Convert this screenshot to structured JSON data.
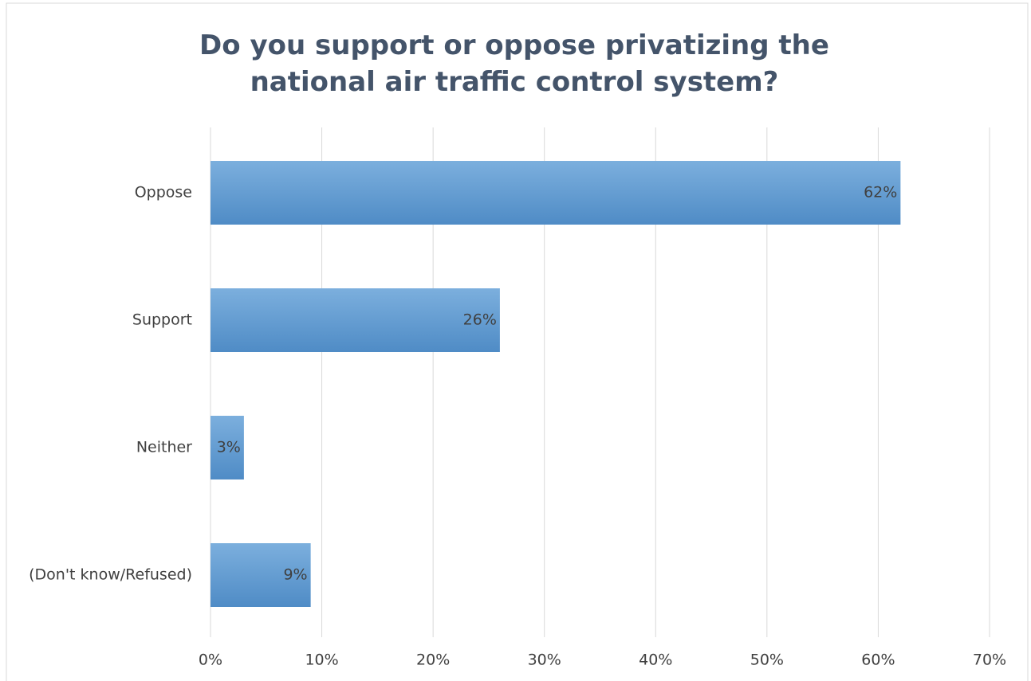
{
  "chart_data": {
    "type": "bar",
    "orientation": "horizontal",
    "title": "Do you support or oppose privatizing the national air traffic control system?",
    "categories": [
      "Oppose",
      "Support",
      "Neither",
      "(Don't know/Refused)"
    ],
    "values": [
      62,
      26,
      3,
      9
    ],
    "value_labels": [
      "62%",
      "26%",
      "3%",
      "9%"
    ],
    "color": "#5b9bd5",
    "xlim": [
      0,
      70
    ],
    "xticks": [
      {
        "value": 0,
        "label": "0%"
      },
      {
        "value": 10,
        "label": "10%"
      },
      {
        "value": 20,
        "label": "20%"
      },
      {
        "value": 30,
        "label": "30%"
      },
      {
        "value": 40,
        "label": "40%"
      },
      {
        "value": 50,
        "label": "50%"
      },
      {
        "value": 60,
        "label": "60%"
      },
      {
        "value": 70,
        "label": "70%"
      }
    ],
    "grid": true
  }
}
